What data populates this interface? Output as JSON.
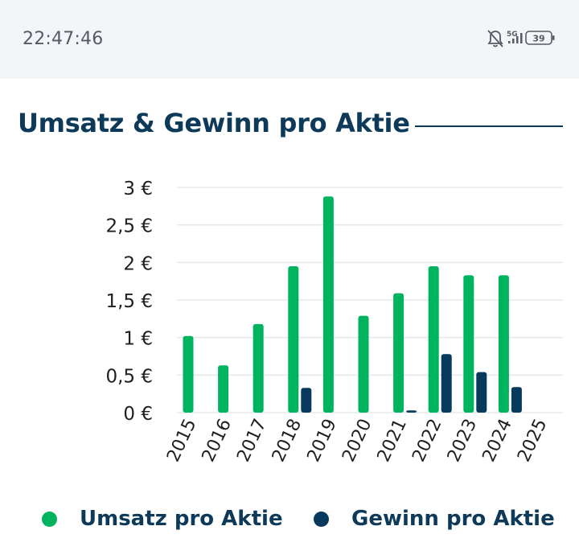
{
  "status_bar": {
    "time": "22:47:46",
    "network": "5G",
    "battery": "39",
    "icons": [
      "bell-off-icon",
      "signal-5g-icon",
      "battery-icon"
    ]
  },
  "section": {
    "title": "Umsatz & Gewinn pro Aktie"
  },
  "colors": {
    "revenue": "#00b35f",
    "profit": "#073a5c",
    "title": "#0e3a5a",
    "grid": "#e6e8ec"
  },
  "chart_data": {
    "type": "bar",
    "title": "Umsatz & Gewinn pro Aktie",
    "categories": [
      "2015",
      "2016",
      "2017",
      "2018",
      "2019",
      "2020",
      "2021",
      "2022",
      "2023",
      "2024",
      "2025"
    ],
    "series": [
      {
        "name": "Umsatz pro Aktie",
        "color": "#00b35f",
        "values": [
          1.02,
          0.63,
          1.18,
          1.95,
          2.88,
          1.29,
          1.59,
          1.95,
          1.83,
          1.83,
          null
        ]
      },
      {
        "name": "Gewinn pro Aktie",
        "color": "#073a5c",
        "values": [
          null,
          null,
          null,
          0.33,
          null,
          null,
          0.03,
          0.78,
          0.54,
          0.34,
          null
        ]
      }
    ],
    "ylim": [
      0,
      3
    ],
    "yticks": [
      {
        "value": 0,
        "label": "0 €"
      },
      {
        "value": 0.5,
        "label": "0,5 €"
      },
      {
        "value": 1,
        "label": "1 €"
      },
      {
        "value": 1.5,
        "label": "1,5 €"
      },
      {
        "value": 2,
        "label": "2 €"
      },
      {
        "value": 2.5,
        "label": "2,5 €"
      },
      {
        "value": 3,
        "label": "3 €"
      }
    ],
    "xlabel": "",
    "ylabel": "",
    "grid": true,
    "legend": "bottom"
  }
}
